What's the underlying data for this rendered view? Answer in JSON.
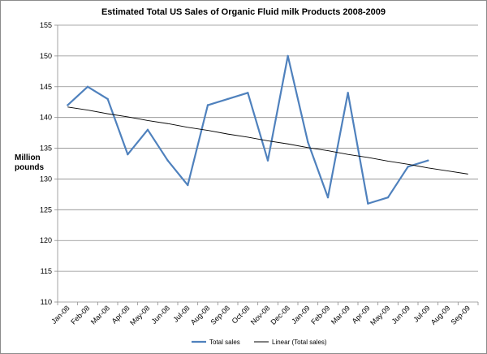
{
  "chart_data": {
    "type": "line",
    "title": "Estimated Total US Sales of Organic Fluid milk Products 2008-2009",
    "ylabel": "Million pounds",
    "xlabel": "",
    "ylim": [
      110,
      155
    ],
    "yticks": [
      110,
      115,
      120,
      125,
      130,
      135,
      140,
      145,
      150,
      155
    ],
    "grid": true,
    "legend_position": "bottom",
    "categories": [
      "Jan-08",
      "Feb-08",
      "Mar-08",
      "Apr-08",
      "May-08",
      "Jun-08",
      "Jul-08",
      "Aug-08",
      "Sep-08",
      "Oct-08",
      "Nov-08",
      "Dec-08",
      "Jan-09",
      "Feb-09",
      "Mar-09",
      "Apr-09",
      "May-09",
      "Jun-09",
      "Jul-09",
      "Aug-09",
      "Sep-09"
    ],
    "series": [
      {
        "name": "Total sales",
        "color": "#4f81bd",
        "values": [
          142,
          145,
          143,
          134,
          138,
          133,
          129,
          142,
          143,
          144,
          133,
          150,
          136,
          127,
          144,
          126,
          127,
          132,
          133,
          null,
          null
        ]
      },
      {
        "name": "Linear (Total sales)",
        "color": "#000000",
        "values": [
          141.7,
          141.2,
          140.6,
          140.1,
          139.5,
          139.0,
          138.4,
          137.9,
          137.3,
          136.8,
          136.2,
          135.7,
          135.1,
          134.6,
          134.0,
          133.5,
          132.9,
          132.4,
          131.8,
          131.3,
          130.8
        ]
      }
    ]
  }
}
